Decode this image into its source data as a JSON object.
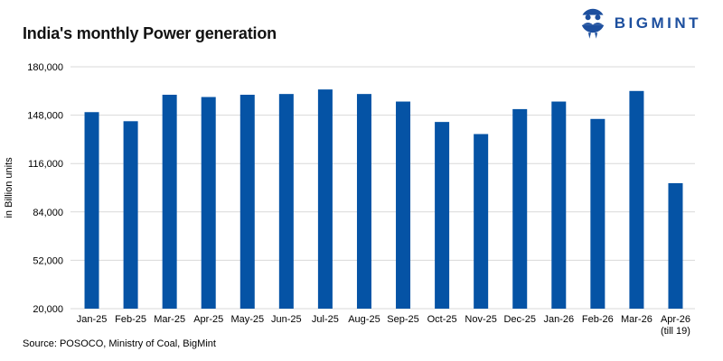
{
  "header": {
    "title": "India's monthly Power generation",
    "logo_text": "BIGMINT",
    "logo_color": "#1d4f9e"
  },
  "chart_data": {
    "type": "bar",
    "title": "India's monthly Power generation",
    "xlabel": "",
    "ylabel": "in Billion units",
    "ylim": [
      20000,
      180000
    ],
    "ytick_step": 32000,
    "ytick_labels": [
      "20,000",
      "52,000",
      "84,000",
      "116,000",
      "148,000",
      "180,000"
    ],
    "grid": true,
    "legend": false,
    "bar_color": "#0553a5",
    "gridline_color": "#d9d9d9",
    "axis_text_color": "#000000",
    "categories": [
      "Jan-25",
      "Feb-25",
      "Mar-25",
      "Apr-25",
      "May-25",
      "Jun-25",
      "Jul-25",
      "Aug-25",
      "Sep-25",
      "Oct-25",
      "Nov-25",
      "Dec-25",
      "Jan-26",
      "Feb-26",
      "Mar-26",
      "Apr-26"
    ],
    "category_sub_labels": [
      "",
      "",
      "",
      "",
      "",
      "",
      "",
      "",
      "",
      "",
      "",
      "",
      "",
      "",
      "",
      "(till 19)"
    ],
    "values": [
      150000,
      144000,
      161500,
      160000,
      161500,
      162000,
      165000,
      162000,
      157000,
      143500,
      135500,
      152000,
      157000,
      145500,
      164000,
      103000
    ]
  },
  "footer": {
    "source": "Source: POSOCO, Ministry of Coal, BigMint"
  }
}
